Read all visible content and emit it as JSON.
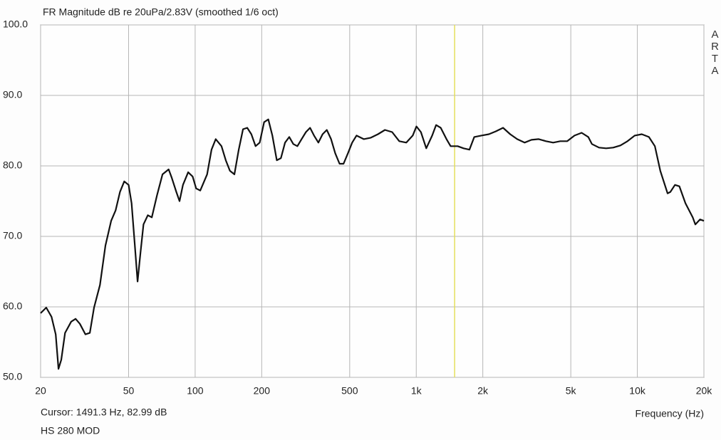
{
  "chart_data": {
    "type": "line",
    "title": "FR Magnitude dB re 20uPa/2.83V (smoothed 1/6 oct)",
    "brand": "ARTA",
    "x_label": "Frequency (Hz)",
    "note": "HS 280 MOD",
    "cursor": {
      "label": "Cursor: 1491.3 Hz, 82.99 dB",
      "x": 1491.3,
      "color": "#e4df5c"
    },
    "x_scale": "log",
    "xlim": [
      20,
      20000
    ],
    "xticks": [
      20,
      50,
      100,
      200,
      500,
      {
        "value": 1000,
        "label": "1k"
      },
      {
        "value": 2000,
        "label": "2k"
      },
      {
        "value": 5000,
        "label": "5k"
      },
      {
        "value": 10000,
        "label": "10k"
      },
      {
        "value": 20000,
        "label": "20k"
      }
    ],
    "ylim": [
      50,
      100
    ],
    "yticks": [
      {
        "value": 50,
        "label": "50.0"
      },
      {
        "value": 60,
        "label": "60.0"
      },
      {
        "value": 70,
        "label": "70.0"
      },
      {
        "value": 80,
        "label": "80.0"
      },
      {
        "value": 90,
        "label": "90.0"
      },
      {
        "value": 100,
        "label": "100.0"
      }
    ],
    "grid": true,
    "color": "#111111",
    "x": [
      20,
      21.2,
      22.4,
      23.4,
      24.1,
      24.8,
      25.8,
      27.5,
      28.8,
      30.1,
      31.9,
      33.4,
      34.9,
      37.1,
      39.3,
      41.7,
      43.7,
      45.7,
      47.8,
      50,
      51.6,
      53.2,
      54.9,
      56.6,
      58.4,
      61.1,
      63.7,
      67.2,
      71.2,
      75.9,
      78.4,
      82.2,
      85,
      88.1,
      93,
      97.4,
      101,
      105.5,
      113.3,
      118.6,
      123.9,
      131.6,
      137.6,
      143.6,
      150.5,
      157.5,
      164.6,
      172,
      179.6,
      187.6,
      195.8,
      205,
      214.2,
      223.5,
      234,
      244.3,
      255,
      266.5,
      278,
      290,
      303,
      317,
      331,
      345,
      361,
      377,
      394,
      412,
      430,
      450,
      469,
      491,
      513,
      537,
      579,
      623,
      671,
      722,
      778,
      838,
      902,
      964,
      1002,
      1050,
      1110,
      1180,
      1230,
      1290,
      1370,
      1430,
      1540,
      1636,
      1740,
      1830,
      1970,
      2130,
      2290,
      2470,
      2660,
      2860,
      3090,
      3320,
      3580,
      3860,
      4160,
      4480,
      4820,
      5200,
      5600,
      6000,
      6230,
      6710,
      7226,
      7780,
      8380,
      9030,
      9730,
      10476,
      11280,
      12000,
      12700,
      13700,
      14100,
      14800,
      15500,
      16500,
      17800,
      18300,
      19200,
      20000
    ],
    "values": [
      59.1,
      59.9,
      58.6,
      56.1,
      51.2,
      52.5,
      56.3,
      57.9,
      58.3,
      57.6,
      56.1,
      56.3,
      59.9,
      63.1,
      68.7,
      72.2,
      73.7,
      76.3,
      77.8,
      77.3,
      74.7,
      69.2,
      63.6,
      67.7,
      71.7,
      73,
      72.7,
      75.8,
      78.8,
      79.5,
      78.3,
      76.3,
      75,
      77.3,
      79.1,
      78.5,
      76.8,
      76.5,
      78.8,
      82.3,
      83.8,
      82.8,
      80.8,
      79.3,
      78.8,
      82.3,
      85.2,
      85.4,
      84.5,
      82.8,
      83.3,
      86.2,
      86.6,
      84.3,
      80.8,
      81.1,
      83.3,
      84.1,
      83.1,
      82.8,
      83.8,
      84.8,
      85.4,
      84.3,
      83.3,
      84.5,
      85.1,
      83.8,
      81.8,
      80.3,
      80.3,
      81.8,
      83.3,
      84.3,
      83.8,
      84,
      84.5,
      85.1,
      84.8,
      83.5,
      83.3,
      84.3,
      85.6,
      84.8,
      82.5,
      84.3,
      85.8,
      85.4,
      83.8,
      82.8,
      82.8,
      82.5,
      82.3,
      84.1,
      84.3,
      84.5,
      84.9,
      85.4,
      84.5,
      83.8,
      83.3,
      83.7,
      83.8,
      83.5,
      83.3,
      83.5,
      83.5,
      84.3,
      84.7,
      84.1,
      83.1,
      82.6,
      82.5,
      82.6,
      82.9,
      83.5,
      84.3,
      84.5,
      84.1,
      82.8,
      79.3,
      76.1,
      76.3,
      77.3,
      77.1,
      74.7,
      72.7,
      71.7,
      72.4,
      72.2
    ]
  }
}
